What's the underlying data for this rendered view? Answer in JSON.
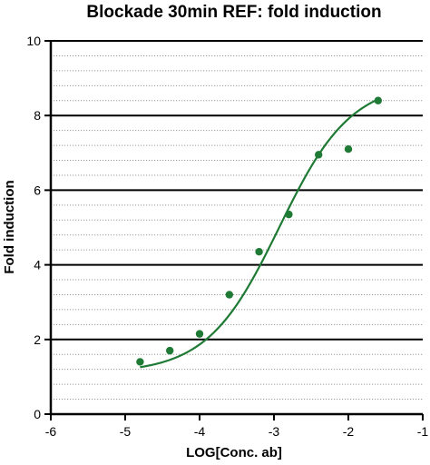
{
  "chart_data": {
    "type": "scatter",
    "title": "Blockade 30min REF: fold induction",
    "xlabel": "LOG[Conc. ab]",
    "ylabel": "Fold induction",
    "xlim": [
      -6,
      -1
    ],
    "ylim": [
      0,
      10
    ],
    "x_ticks": [
      -6,
      -5,
      -4,
      -3,
      -2,
      -1
    ],
    "x_tick_labels": [
      "-6",
      "-5",
      "-4",
      "-3",
      "-2",
      "-1"
    ],
    "y_ticks": [
      0,
      2,
      4,
      6,
      8,
      10
    ],
    "y_tick_labels": [
      "0",
      "2",
      "4",
      "6",
      "8",
      "10"
    ],
    "grid": "horizontal: solid major every 2, dotted minor every 0.4",
    "colors": {
      "series": "#1e7a34",
      "axis": "#000000",
      "major_grid": "#000000",
      "minor_grid": "#9a9a9a"
    },
    "series": [
      {
        "points": [
          {
            "x": -4.8,
            "y": 1.4
          },
          {
            "x": -4.4,
            "y": 1.7
          },
          {
            "x": -4.0,
            "y": 2.15
          },
          {
            "x": -3.6,
            "y": 3.2
          },
          {
            "x": -3.2,
            "y": 4.35
          },
          {
            "x": -2.8,
            "y": 5.35
          },
          {
            "x": -2.4,
            "y": 6.95
          },
          {
            "x": -2.0,
            "y": 7.1
          },
          {
            "x": -1.6,
            "y": 8.4
          }
        ],
        "fit": {
          "type": "sigmoidal 4PL",
          "x_range": [
            -4.8,
            -1.6
          ],
          "bottom": 1.1,
          "top": 8.9,
          "logEC50": -2.93,
          "hillslope": 0.9
        }
      }
    ]
  }
}
